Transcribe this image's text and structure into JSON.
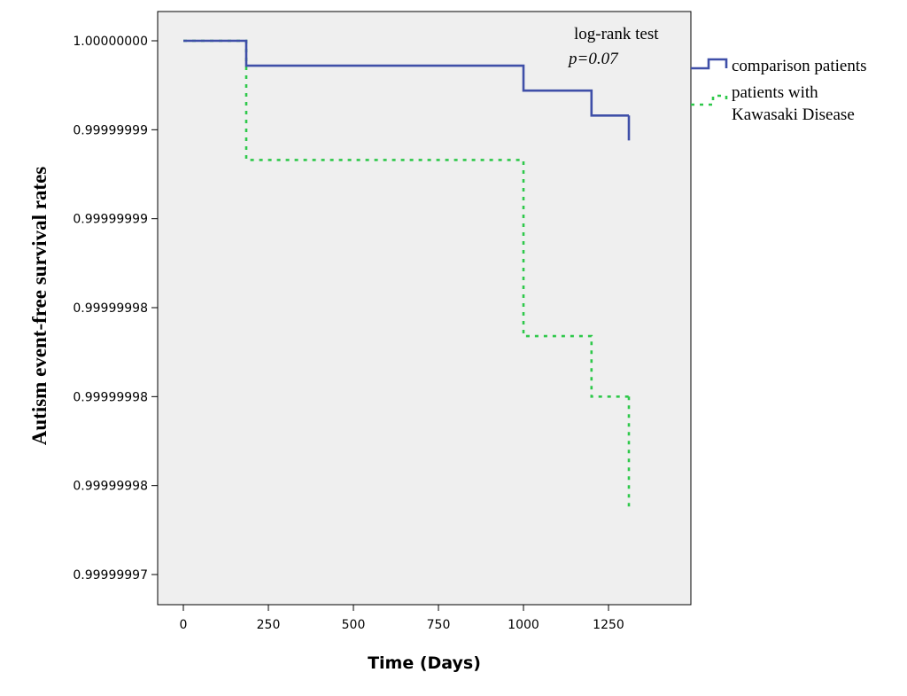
{
  "chart_data": {
    "type": "line",
    "step": true,
    "xlabel": "Time (Days)",
    "ylabel": "Autism event-free survival rates",
    "xlim": [
      -75,
      1480
    ],
    "ylim": [
      0.999999969,
      1.0000000017
    ],
    "x_ticks": [
      0,
      250,
      500,
      750,
      1000,
      1250
    ],
    "x_tick_labels": [
      "0",
      "250",
      "500",
      "750",
      "1000",
      "1250"
    ],
    "y_ticks": [
      1.0,
      0.999999995,
      0.99999999,
      0.999999985,
      0.99999998,
      0.999999975,
      0.99999997
    ],
    "y_tick_labels": [
      "1.00000000",
      "0.99999999",
      "0.99999999",
      "0.99999998",
      "0.99999998",
      "0.99999998",
      "0.99999997"
    ],
    "grid": false,
    "background": "#efefef",
    "legend_position": "right, outside plot",
    "annotation": {
      "line1": "log-rank test",
      "line2": "p=0.07"
    },
    "series": [
      {
        "name": "comparison patients",
        "color": "#3f4fa8",
        "dash": "solid",
        "x": [
          0,
          185,
          185,
          1000,
          1000,
          1200,
          1200,
          1310
        ],
        "y": [
          1.0,
          1.0,
          0.9999999986,
          0.9999999986,
          0.9999999972,
          0.9999999972,
          0.9999999958,
          0.9999999958
        ],
        "censor_end_y": 0.9999999944
      },
      {
        "name": "patients with Kawasaki Disease",
        "color": "#2ec84a",
        "dash": "dotted",
        "x": [
          0,
          185,
          185,
          1000,
          1000,
          1200,
          1200,
          1310
        ],
        "y": [
          1.0,
          1.0,
          0.9999999933,
          0.9999999933,
          0.9999999834,
          0.9999999834,
          0.99999998,
          0.99999998
        ],
        "censor_end_y": 0.9999999737
      }
    ],
    "legend": [
      {
        "label_lines": [
          "comparison patients"
        ],
        "color": "#3f4fa8",
        "dash": "solid"
      },
      {
        "label_lines": [
          "patients with",
          "Kawasaki Disease"
        ],
        "color": "#2ec84a",
        "dash": "dotted"
      }
    ]
  }
}
